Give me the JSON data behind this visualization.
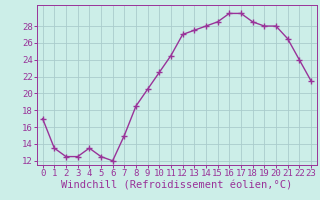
{
  "x": [
    0,
    1,
    2,
    3,
    4,
    5,
    6,
    7,
    8,
    9,
    10,
    11,
    12,
    13,
    14,
    15,
    16,
    17,
    18,
    19,
    20,
    21,
    22,
    23
  ],
  "y": [
    17,
    13.5,
    12.5,
    12.5,
    13.5,
    12.5,
    12,
    15,
    18.5,
    20.5,
    22.5,
    24.5,
    27,
    27.5,
    28,
    28.5,
    29.5,
    29.5,
    28.5,
    28,
    28,
    26.5,
    24,
    21.5
  ],
  "line_color": "#993399",
  "marker": "+",
  "bg_color": "#cceee8",
  "grid_color": "#aacccc",
  "xlabel": "Windchill (Refroidissement éolien,°C)",
  "ylabel_ticks": [
    12,
    14,
    16,
    18,
    20,
    22,
    24,
    26,
    28
  ],
  "ylim": [
    11.5,
    30.5
  ],
  "xlim": [
    -0.5,
    23.5
  ],
  "tick_label_color": "#993399",
  "axis_color": "#993399",
  "font": "monospace",
  "xlabel_fontsize": 7.5,
  "tick_fontsize": 6.5,
  "linewidth": 1.0,
  "markersize": 4,
  "markeredgewidth": 1.0
}
